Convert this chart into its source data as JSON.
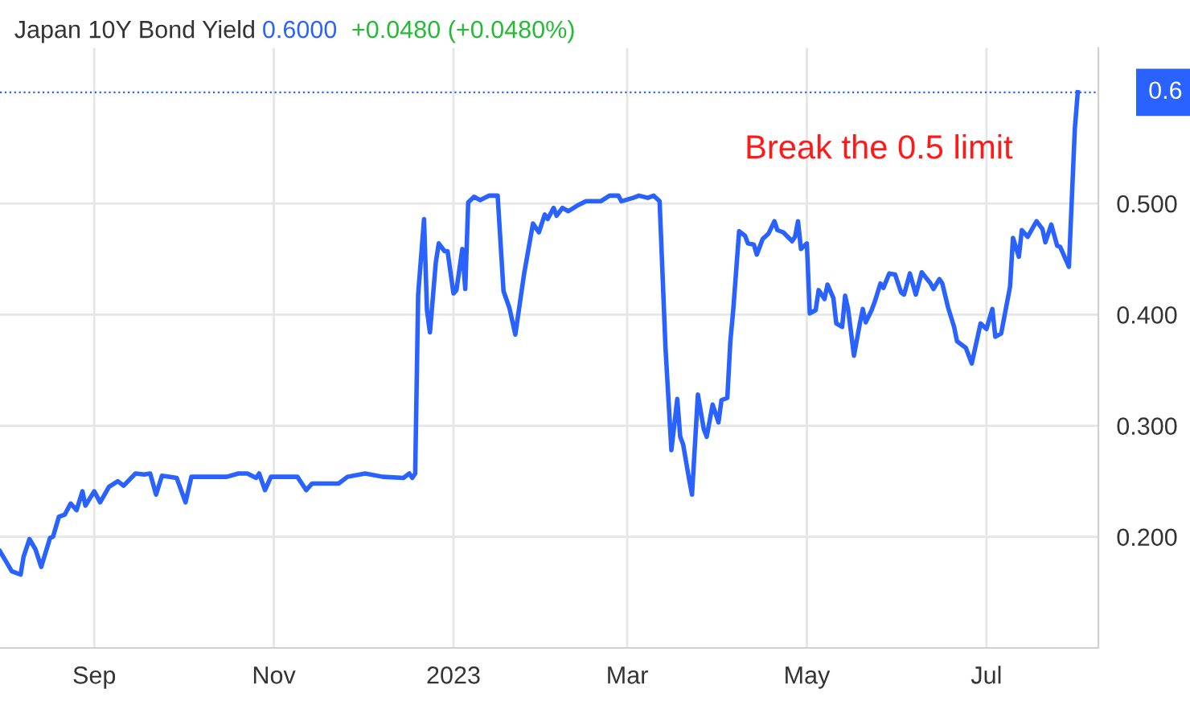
{
  "chart_data": {
    "type": "line",
    "title": "Japan 10Y Bond Yield",
    "annotations": [
      "0.6000",
      "+0.0480 (+0.0480%)",
      "Break the 0.5 limit"
    ],
    "x": [
      "2022-07-31",
      "2022-08-02",
      "2022-08-04",
      "2022-08-07",
      "2022-08-08",
      "2022-08-10",
      "2022-08-12",
      "2022-08-14",
      "2022-08-17",
      "2022-08-18",
      "2022-08-20",
      "2022-08-22",
      "2022-08-24",
      "2022-08-26",
      "2022-08-28",
      "2022-08-29",
      "2022-09-01",
      "2022-09-03",
      "2022-09-06",
      "2022-09-09",
      "2022-09-11",
      "2022-09-15",
      "2022-09-18",
      "2022-09-20",
      "2022-09-22",
      "2022-09-24",
      "2022-09-29",
      "2022-10-02",
      "2022-10-04",
      "2022-10-16",
      "2022-10-20",
      "2022-10-23",
      "2022-10-26",
      "2022-10-27",
      "2022-10-29",
      "2022-10-31",
      "2022-11-09",
      "2022-11-12",
      "2022-11-14",
      "2022-11-23",
      "2022-11-26",
      "2022-12-02",
      "2022-12-08",
      "2022-12-15",
      "2022-12-17",
      "2022-12-18",
      "2022-12-19",
      "2022-12-20",
      "2022-12-22",
      "2022-12-23",
      "2022-12-24",
      "2022-12-26",
      "2022-12-27",
      "2022-12-29",
      "2022-12-30",
      "2023-01-01",
      "2023-01-02",
      "2023-01-04",
      "2023-01-05",
      "2023-01-06",
      "2023-01-08",
      "2023-01-10",
      "2023-01-13",
      "2023-01-16",
      "2023-01-18",
      "2023-01-20",
      "2023-01-22",
      "2023-01-25",
      "2023-01-28",
      "2023-01-30",
      "2023-02-01",
      "2023-02-02",
      "2023-02-04",
      "2023-02-05",
      "2023-02-07",
      "2023-02-09",
      "2023-02-12",
      "2023-02-15",
      "2023-02-20",
      "2023-02-23",
      "2023-02-26",
      "2023-02-27",
      "2023-03-03",
      "2023-03-05",
      "2023-03-08",
      "2023-03-10",
      "2023-03-12",
      "2023-03-14",
      "2023-03-16",
      "2023-03-18",
      "2023-03-19",
      "2023-03-20",
      "2023-03-22",
      "2023-03-23",
      "2023-03-25",
      "2023-03-27",
      "2023-03-28",
      "2023-03-30",
      "2023-04-01",
      "2023-04-02",
      "2023-04-04",
      "2023-04-05",
      "2023-04-06",
      "2023-04-08",
      "2023-04-10",
      "2023-04-11",
      "2023-04-13",
      "2023-04-14",
      "2023-04-16",
      "2023-04-18",
      "2023-04-20",
      "2023-04-21",
      "2023-04-23",
      "2023-04-26",
      "2023-04-27",
      "2023-04-28",
      "2023-04-29",
      "2023-05-01",
      "2023-05-02",
      "2023-05-04",
      "2023-05-05",
      "2023-05-07",
      "2023-05-08",
      "2023-05-10",
      "2023-05-11",
      "2023-05-13",
      "2023-05-14",
      "2023-05-15",
      "2023-05-17",
      "2023-05-19",
      "2023-05-20",
      "2023-05-21",
      "2023-05-23",
      "2023-05-24",
      "2023-05-26",
      "2023-05-27",
      "2023-05-29",
      "2023-05-31",
      "2023-06-02",
      "2023-06-03",
      "2023-06-05",
      "2023-06-07",
      "2023-06-09",
      "2023-06-12",
      "2023-06-13",
      "2023-06-15",
      "2023-06-16",
      "2023-06-18",
      "2023-06-20",
      "2023-06-21",
      "2023-06-24",
      "2023-06-26",
      "2023-06-29",
      "2023-07-01",
      "2023-07-03",
      "2023-07-04",
      "2023-07-06",
      "2023-07-09",
      "2023-07-10",
      "2023-07-12",
      "2023-07-13",
      "2023-07-15",
      "2023-07-18",
      "2023-07-20",
      "2023-07-21",
      "2023-07-23",
      "2023-07-25",
      "2023-07-26",
      "2023-07-29",
      "2023-07-31",
      "2023-08-01"
    ],
    "series": [
      {
        "color": "#2962ff",
        "values": [
          0.187,
          0.178,
          0.169,
          0.166,
          0.182,
          0.198,
          0.189,
          0.173,
          0.199,
          0.2,
          0.218,
          0.22,
          0.23,
          0.224,
          0.241,
          0.228,
          0.241,
          0.231,
          0.245,
          0.25,
          0.246,
          0.257,
          0.256,
          0.257,
          0.238,
          0.255,
          0.253,
          0.231,
          0.254,
          0.254,
          0.257,
          0.257,
          0.253,
          0.257,
          0.242,
          0.254,
          0.254,
          0.242,
          0.248,
          0.248,
          0.254,
          0.257,
          0.254,
          0.253,
          0.257,
          0.253,
          0.257,
          0.418,
          0.486,
          0.404,
          0.384,
          0.447,
          0.464,
          0.457,
          0.457,
          0.419,
          0.422,
          0.459,
          0.423,
          0.501,
          0.506,
          0.503,
          0.507,
          0.507,
          0.421,
          0.406,
          0.382,
          0.437,
          0.482,
          0.474,
          0.49,
          0.486,
          0.496,
          0.489,
          0.496,
          0.493,
          0.498,
          0.502,
          0.502,
          0.507,
          0.507,
          0.502,
          0.505,
          0.507,
          0.505,
          0.507,
          0.502,
          0.37,
          0.278,
          0.324,
          0.29,
          0.283,
          0.252,
          0.238,
          0.328,
          0.297,
          0.29,
          0.319,
          0.303,
          0.323,
          0.325,
          0.375,
          0.404,
          0.475,
          0.471,
          0.464,
          0.463,
          0.454,
          0.468,
          0.473,
          0.484,
          0.476,
          0.474,
          0.466,
          0.47,
          0.484,
          0.459,
          0.464,
          0.401,
          0.404,
          0.422,
          0.414,
          0.427,
          0.415,
          0.392,
          0.389,
          0.417,
          0.405,
          0.363,
          0.392,
          0.405,
          0.393,
          0.404,
          0.411,
          0.428,
          0.424,
          0.437,
          0.436,
          0.42,
          0.418,
          0.437,
          0.418,
          0.438,
          0.428,
          0.423,
          0.432,
          0.428,
          0.406,
          0.389,
          0.376,
          0.37,
          0.356,
          0.392,
          0.387,
          0.405,
          0.38,
          0.383,
          0.425,
          0.469,
          0.452,
          0.476,
          0.47,
          0.484,
          0.477,
          0.465,
          0.481,
          0.462,
          0.461,
          0.443,
          0.567,
          0.6
        ]
      }
    ],
    "xlim": [
      "2022-07-31",
      "2023-08-08"
    ],
    "xticks": [
      {
        "value": "2022-09-01",
        "label": "Sep"
      },
      {
        "value": "2022-11-01",
        "label": "Nov"
      },
      {
        "value": "2023-01-01",
        "label": "2023"
      },
      {
        "value": "2023-03-01",
        "label": "Mar"
      },
      {
        "value": "2023-05-01",
        "label": "May"
      },
      {
        "value": "2023-07-01",
        "label": "Jul"
      }
    ],
    "ylim": [
      0.1,
      0.64
    ],
    "yticks": [
      {
        "value": 0.2,
        "label": "0.200"
      },
      {
        "value": 0.3,
        "label": "0.300"
      },
      {
        "value": 0.4,
        "label": "0.400"
      },
      {
        "value": 0.5,
        "label": "0.500"
      }
    ],
    "ref_lines": [
      {
        "axis": "y",
        "value": 0.6,
        "label": "0.6",
        "color": "#2962ff",
        "line_style": "dotted"
      }
    ],
    "grid": true,
    "line_style": "solid",
    "marker": "none"
  }
}
